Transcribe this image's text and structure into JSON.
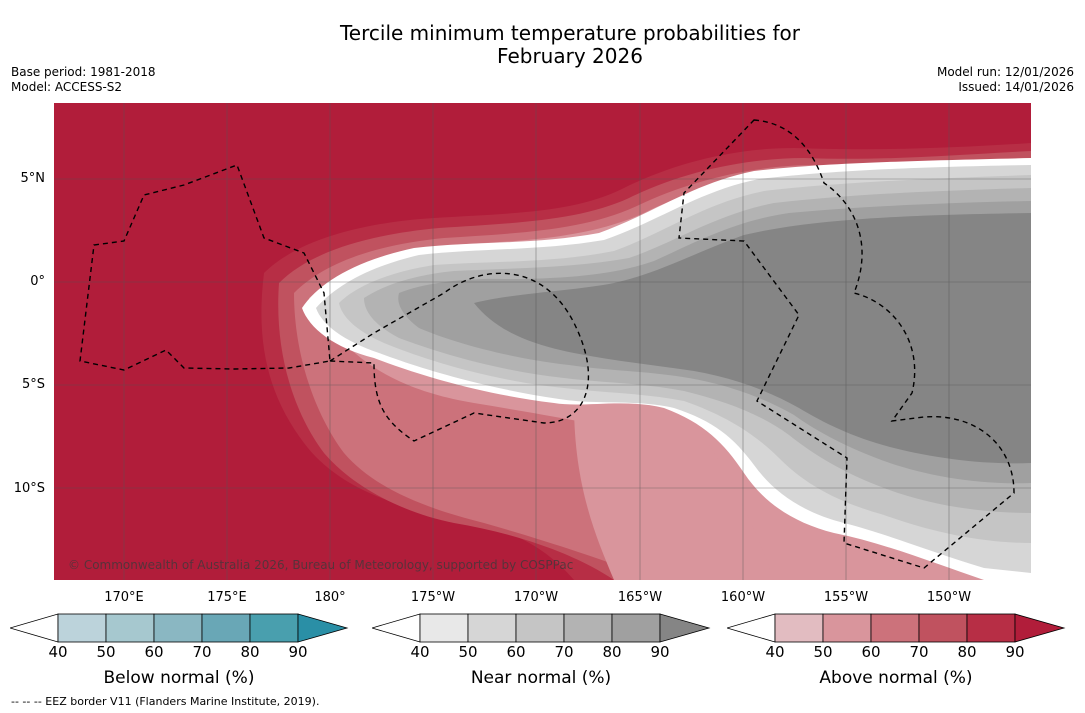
{
  "title": {
    "line1": "Tercile minimum temperature probabilities for",
    "line2": "February 2026"
  },
  "meta_left": {
    "base_period": "Base period: 1981-2018",
    "model": "Model: ACCESS-S2"
  },
  "meta_right": {
    "model_run": "Model run: 12/01/2026",
    "issued": "Issued: 14/01/2026"
  },
  "lat_labels": [
    "5°N",
    "0°",
    "5°S",
    "10°S"
  ],
  "lon_labels": [
    "170°E",
    "175°E",
    "180°",
    "175°W",
    "170°W",
    "165°W",
    "160°W",
    "155°W",
    "150°W"
  ],
  "copyright": "© Commonwealth of Australia 2026, Bureau of Meteorology, supported by COSPPac",
  "colorbars": [
    {
      "label": "Below normal (%)",
      "ticks": [
        "40",
        "50",
        "60",
        "70",
        "80",
        "90"
      ],
      "colors": [
        "#ffffff",
        "#bcd3db",
        "#a6c8cf",
        "#8ab7c2",
        "#69a7b6",
        "#499fae",
        "#2a8fa6"
      ]
    },
    {
      "label": "Near normal (%)",
      "ticks": [
        "40",
        "50",
        "60",
        "70",
        "80",
        "90"
      ],
      "colors": [
        "#ffffff",
        "#e8e8e8",
        "#d6d6d6",
        "#c5c5c5",
        "#b3b3b3",
        "#a0a0a0",
        "#858585"
      ]
    },
    {
      "label": "Above normal (%)",
      "ticks": [
        "40",
        "50",
        "60",
        "70",
        "80",
        "90"
      ],
      "colors": [
        "#ffffff",
        "#e2bcc1",
        "#d9959c",
        "#cc727b",
        "#c0525f",
        "#b72e45",
        "#b11d3a"
      ]
    }
  ],
  "footnote": "--  --  -- EEZ border V11 (Flanders Marine Institute, 2019).",
  "colors": {
    "above_90": "#b11d3a",
    "above_80": "#b72e45",
    "above_70": "#c0525f",
    "above_60": "#cc727b",
    "above_50": "#d9959c",
    "near_90": "#858585",
    "near_80": "#a0a0a0",
    "near_70": "#b3b3b3",
    "near_60": "#c5c5c5",
    "near_50": "#d6d6d6",
    "near_40": "#e8e8e8"
  }
}
